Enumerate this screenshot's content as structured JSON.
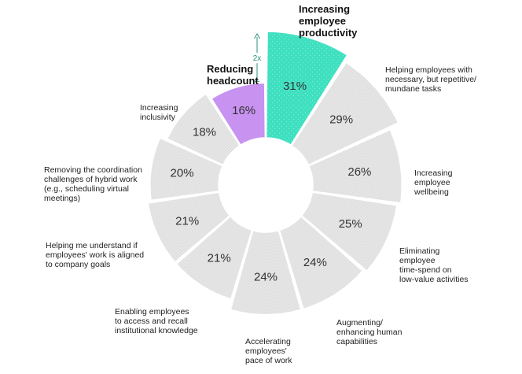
{
  "chart_data": {
    "type": "pie",
    "variant": "radial-sunburst",
    "segments": [
      {
        "label": "Increasing employee productivity",
        "value": 31,
        "value_label": "31%",
        "color": "#3fe0c0",
        "highlight": true
      },
      {
        "label": "Helping employees with necessary, but repetitive/ mundane tasks",
        "value": 29,
        "value_label": "29%",
        "color": "#e6e6e6",
        "highlight": false
      },
      {
        "label": "Increasing employee wellbeing",
        "value": 26,
        "value_label": "26%",
        "color": "#e6e6e6",
        "highlight": false
      },
      {
        "label": "Eliminating employee time-spend on low-value activities",
        "value": 25,
        "value_label": "25%",
        "color": "#e6e6e6",
        "highlight": false
      },
      {
        "label": "Augmenting/ enhancing human capabilities",
        "value": 24,
        "value_label": "24%",
        "color": "#e6e6e6",
        "highlight": false
      },
      {
        "label": "Accelerating employees' pace of work",
        "value": 24,
        "value_label": "24%",
        "color": "#e6e6e6",
        "highlight": false
      },
      {
        "label": "Enabling employees to access and recall institutional knowledge",
        "value": 21,
        "value_label": "21%",
        "color": "#e6e6e6",
        "highlight": false
      },
      {
        "label": "Helping me understand if employees' work is aligned to company goals",
        "value": 21,
        "value_label": "21%",
        "color": "#e6e6e6",
        "highlight": false
      },
      {
        "label": "Removing the coordination challenges of hybrid work (e.g., scheduling virtual meetings)",
        "value": 20,
        "value_label": "20%",
        "color": "#e6e6e6",
        "highlight": false
      },
      {
        "label": "Increasing inclusivity",
        "value": 18,
        "value_label": "18%",
        "color": "#e6e6e6",
        "highlight": false
      },
      {
        "label": "Reducing headcount",
        "value": 16,
        "value_label": "16%",
        "color": "#c792f0",
        "highlight": true
      }
    ],
    "annotation": "2x",
    "colors": {
      "highlight_primary": "#3fe0c0",
      "highlight_secondary": "#c792f0",
      "neutral": "#e6e6e6",
      "dotted_pattern": "#c9c9c9",
      "annotation": "#2a8f7c"
    }
  },
  "labels": [
    {
      "lines": [
        "Increasing",
        "employee",
        "productivity"
      ],
      "bold": true
    },
    {
      "lines": [
        "Helping employees with",
        "necessary, but repetitive/",
        "mundane tasks"
      ],
      "bold": false
    },
    {
      "lines": [
        "Increasing",
        "employee",
        "wellbeing"
      ],
      "bold": false
    },
    {
      "lines": [
        "Eliminating",
        "employee",
        "time-spend on",
        "low-value activities"
      ],
      "bold": false
    },
    {
      "lines": [
        "Augmenting/",
        "enhancing human",
        "capabilities"
      ],
      "bold": false
    },
    {
      "lines": [
        "Accelerating",
        "employees'",
        "pace of work"
      ],
      "bold": false
    },
    {
      "lines": [
        "Enabling employees",
        "to access and recall",
        "institutional knowledge"
      ],
      "bold": false
    },
    {
      "lines": [
        "Helping me understand if",
        "employees' work is aligned",
        "to company goals"
      ],
      "bold": false
    },
    {
      "lines": [
        "Removing the coordination",
        "challenges of hybrid work",
        "(e.g., scheduling virtual",
        "meetings)"
      ],
      "bold": false
    },
    {
      "lines": [
        "Increasing",
        "inclusivity"
      ],
      "bold": false
    },
    {
      "lines": [
        "Reducing",
        "headcount"
      ],
      "bold": true
    }
  ]
}
